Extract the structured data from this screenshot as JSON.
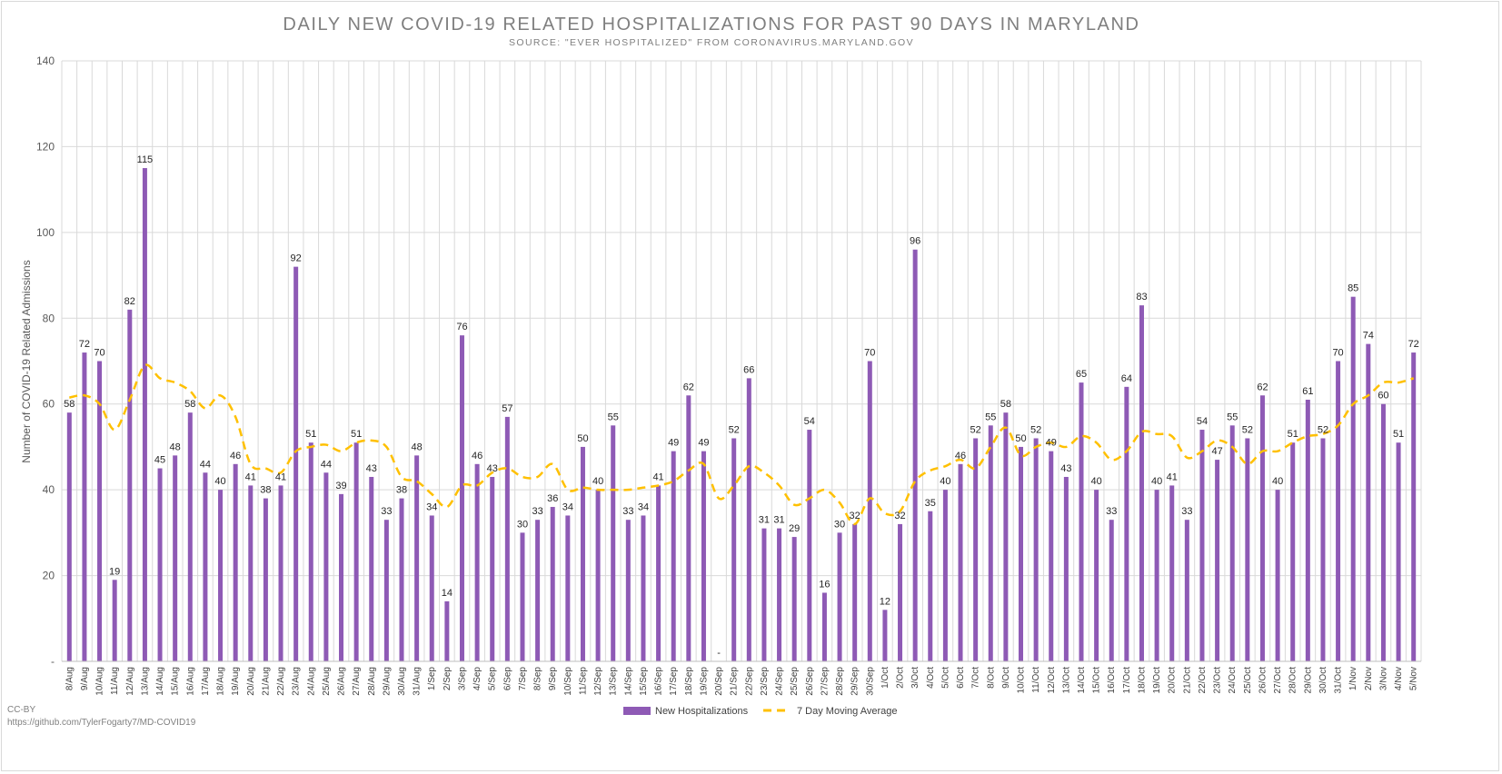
{
  "chart_data": {
    "type": "bar",
    "title": "DAILY NEW COVID-19 RELATED HOSPITALIZATIONS FOR PAST 90 DAYS IN MARYLAND",
    "subtitle": "SOURCE: \"EVER HOSPITALIZED\" FROM CORONAVIRUS.MARYLAND.GOV",
    "ylabel": "Number of COVID-19 Related Admissions",
    "xlabel": "",
    "ylim": [
      0,
      140
    ],
    "yticks": [
      0,
      20,
      40,
      60,
      80,
      100,
      120,
      140
    ],
    "ytick_labels": [
      "-",
      "20",
      "40",
      "60",
      "80",
      "100",
      "120",
      "140"
    ],
    "grid": true,
    "legend_position": "bottom",
    "categories": [
      "8/Aug",
      "9/Aug",
      "10/Aug",
      "11/Aug",
      "12/Aug",
      "13/Aug",
      "14/Aug",
      "15/Aug",
      "16/Aug",
      "17/Aug",
      "18/Aug",
      "19/Aug",
      "20/Aug",
      "21/Aug",
      "22/Aug",
      "23/Aug",
      "24/Aug",
      "25/Aug",
      "26/Aug",
      "27/Aug",
      "28/Aug",
      "29/Aug",
      "30/Aug",
      "31/Aug",
      "1/Sep",
      "2/Sep",
      "3/Sep",
      "4/Sep",
      "5/Sep",
      "6/Sep",
      "7/Sep",
      "8/Sep",
      "9/Sep",
      "10/Sep",
      "11/Sep",
      "12/Sep",
      "13/Sep",
      "14/Sep",
      "15/Sep",
      "16/Sep",
      "17/Sep",
      "18/Sep",
      "19/Sep",
      "20/Sep",
      "21/Sep",
      "22/Sep",
      "23/Sep",
      "24/Sep",
      "25/Sep",
      "26/Sep",
      "27/Sep",
      "28/Sep",
      "29/Sep",
      "30/Sep",
      "1/Oct",
      "2/Oct",
      "3/Oct",
      "4/Oct",
      "5/Oct",
      "6/Oct",
      "7/Oct",
      "8/Oct",
      "9/Oct",
      "10/Oct",
      "11/Oct",
      "12/Oct",
      "13/Oct",
      "14/Oct",
      "15/Oct",
      "16/Oct",
      "17/Oct",
      "18/Oct",
      "19/Oct",
      "20/Oct",
      "21/Oct",
      "22/Oct",
      "23/Oct",
      "24/Oct",
      "25/Oct",
      "26/Oct",
      "27/Oct",
      "28/Oct",
      "29/Oct",
      "30/Oct",
      "31/Oct",
      "1/Nov",
      "2/Nov",
      "3/Nov",
      "4/Nov",
      "5/Nov"
    ],
    "series": [
      {
        "name": "New Hospitalizations",
        "kind": "bar",
        "color": "#8e5ab5",
        "values": [
          58,
          72,
          70,
          19,
          82,
          115,
          45,
          48,
          58,
          44,
          40,
          46,
          41,
          38,
          41,
          92,
          51,
          44,
          39,
          51,
          43,
          33,
          38,
          48,
          34,
          14,
          76,
          46,
          43,
          57,
          30,
          33,
          36,
          34,
          50,
          40,
          55,
          33,
          34,
          41,
          49,
          62,
          49,
          0,
          52,
          66,
          31,
          31,
          29,
          54,
          16,
          30,
          32,
          70,
          12,
          32,
          96,
          35,
          40,
          46,
          52,
          55,
          58,
          50,
          52,
          49,
          43,
          65,
          40,
          33,
          64,
          83,
          40,
          41,
          33,
          54,
          47,
          55,
          52,
          62,
          40,
          51,
          61,
          52,
          70,
          85,
          74,
          60,
          51,
          72
        ],
        "data_labels": [
          "58",
          "72",
          "70",
          "19",
          "82",
          "115",
          "45",
          "48",
          "58",
          "44",
          "40",
          "46",
          "41",
          "38",
          "41",
          "92",
          "51",
          "44",
          "39",
          "51",
          "43",
          "33",
          "38",
          "48",
          "34",
          "14",
          "76",
          "46",
          "43",
          "57",
          "30",
          "33",
          "36",
          "34",
          "50",
          "40",
          "55",
          "33",
          "34",
          "41",
          "49",
          "62",
          "49",
          "-",
          "52",
          "66",
          "31",
          "31",
          "29",
          "54",
          "16",
          "30",
          "32",
          "70",
          "12",
          "32",
          "96",
          "35",
          "40",
          "46",
          "52",
          "55",
          "58",
          "50",
          "52",
          "49",
          "43",
          "65",
          "40",
          "33",
          "64",
          "83",
          "40",
          "41",
          "33",
          "54",
          "47",
          "55",
          "52",
          "62",
          "40",
          "51",
          "61",
          "52",
          "70",
          "85",
          "74",
          "60",
          "51",
          "72"
        ]
      },
      {
        "name": "7 Day Moving Average",
        "kind": "line",
        "color": "#ffc000",
        "style": "dashed",
        "values": [
          61.5,
          62,
          60,
          54,
          61,
          69,
          66,
          65,
          63,
          59,
          62,
          57,
          46,
          45,
          44,
          49,
          50,
          50.5,
          49,
          51,
          51.5,
          50,
          43,
          42,
          39,
          36,
          41,
          41,
          44,
          45,
          43,
          43,
          46,
          40,
          40.5,
          40,
          40,
          40,
          40.5,
          41,
          42,
          44.5,
          46,
          38,
          41,
          45.5,
          44,
          41,
          36.5,
          38,
          40,
          37,
          32,
          38,
          34.5,
          35,
          42,
          44.5,
          45.5,
          47,
          45,
          50,
          54.5,
          48,
          50,
          51,
          50,
          52.5,
          51,
          47,
          49,
          53.5,
          53,
          52.5,
          47.5,
          49,
          51.5,
          50,
          46,
          49,
          49,
          51,
          52.5,
          53,
          55,
          60,
          62,
          65,
          65,
          66
        ]
      }
    ]
  },
  "credits": {
    "license": "CC-BY",
    "source_url": "https://github.com/TylerFogarty7/MD-COVID19"
  }
}
